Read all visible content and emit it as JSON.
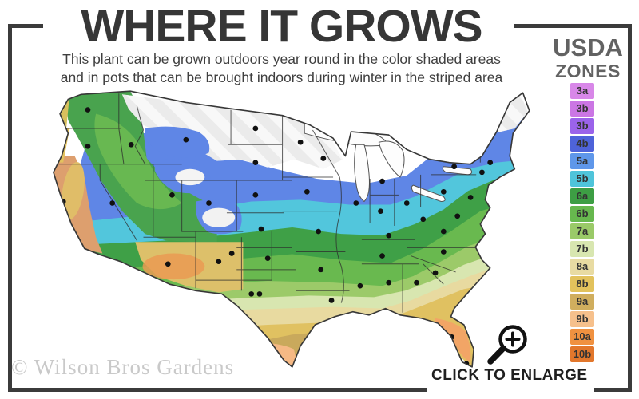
{
  "header": {
    "title": "WHERE IT GROWS",
    "subtitle_line1": "This plant can be grown outdoors year round in the color shaded areas",
    "subtitle_line2": "and in pots that can be brought indoors during winter in the striped area"
  },
  "legend": {
    "title_line1": "USDA",
    "title_line2": "ZONES",
    "zones": [
      {
        "label": "3a",
        "color": "#d887e8"
      },
      {
        "label": "3b",
        "color": "#cb76e4"
      },
      {
        "label": "3b",
        "color": "#9b63ea"
      },
      {
        "label": "4b",
        "color": "#4e63d9"
      },
      {
        "label": "5a",
        "color": "#5f97ea"
      },
      {
        "label": "5b",
        "color": "#4fc4da"
      },
      {
        "label": "6a",
        "color": "#3d9e44"
      },
      {
        "label": "6b",
        "color": "#67b84e"
      },
      {
        "label": "7a",
        "color": "#9aca68"
      },
      {
        "label": "7b",
        "color": "#d8e6b0"
      },
      {
        "label": "8a",
        "color": "#e8dba2"
      },
      {
        "label": "8b",
        "color": "#e2c25c"
      },
      {
        "label": "9a",
        "color": "#d0ae5e"
      },
      {
        "label": "9b",
        "color": "#f6c08c"
      },
      {
        "label": "10a",
        "color": "#f09140"
      },
      {
        "label": "10b",
        "color": "#e2772c"
      }
    ]
  },
  "map": {
    "kind": "USDA plant hardiness zones map of the continental United States",
    "striped_area_meaning": "striped area",
    "icon": "us-zones-map"
  },
  "footer": {
    "watermark": "© Wilson Bros Gardens",
    "enlarge_label": "CLICK TO ENLARGE",
    "magnifier_icon": "zoom-in-icon"
  }
}
